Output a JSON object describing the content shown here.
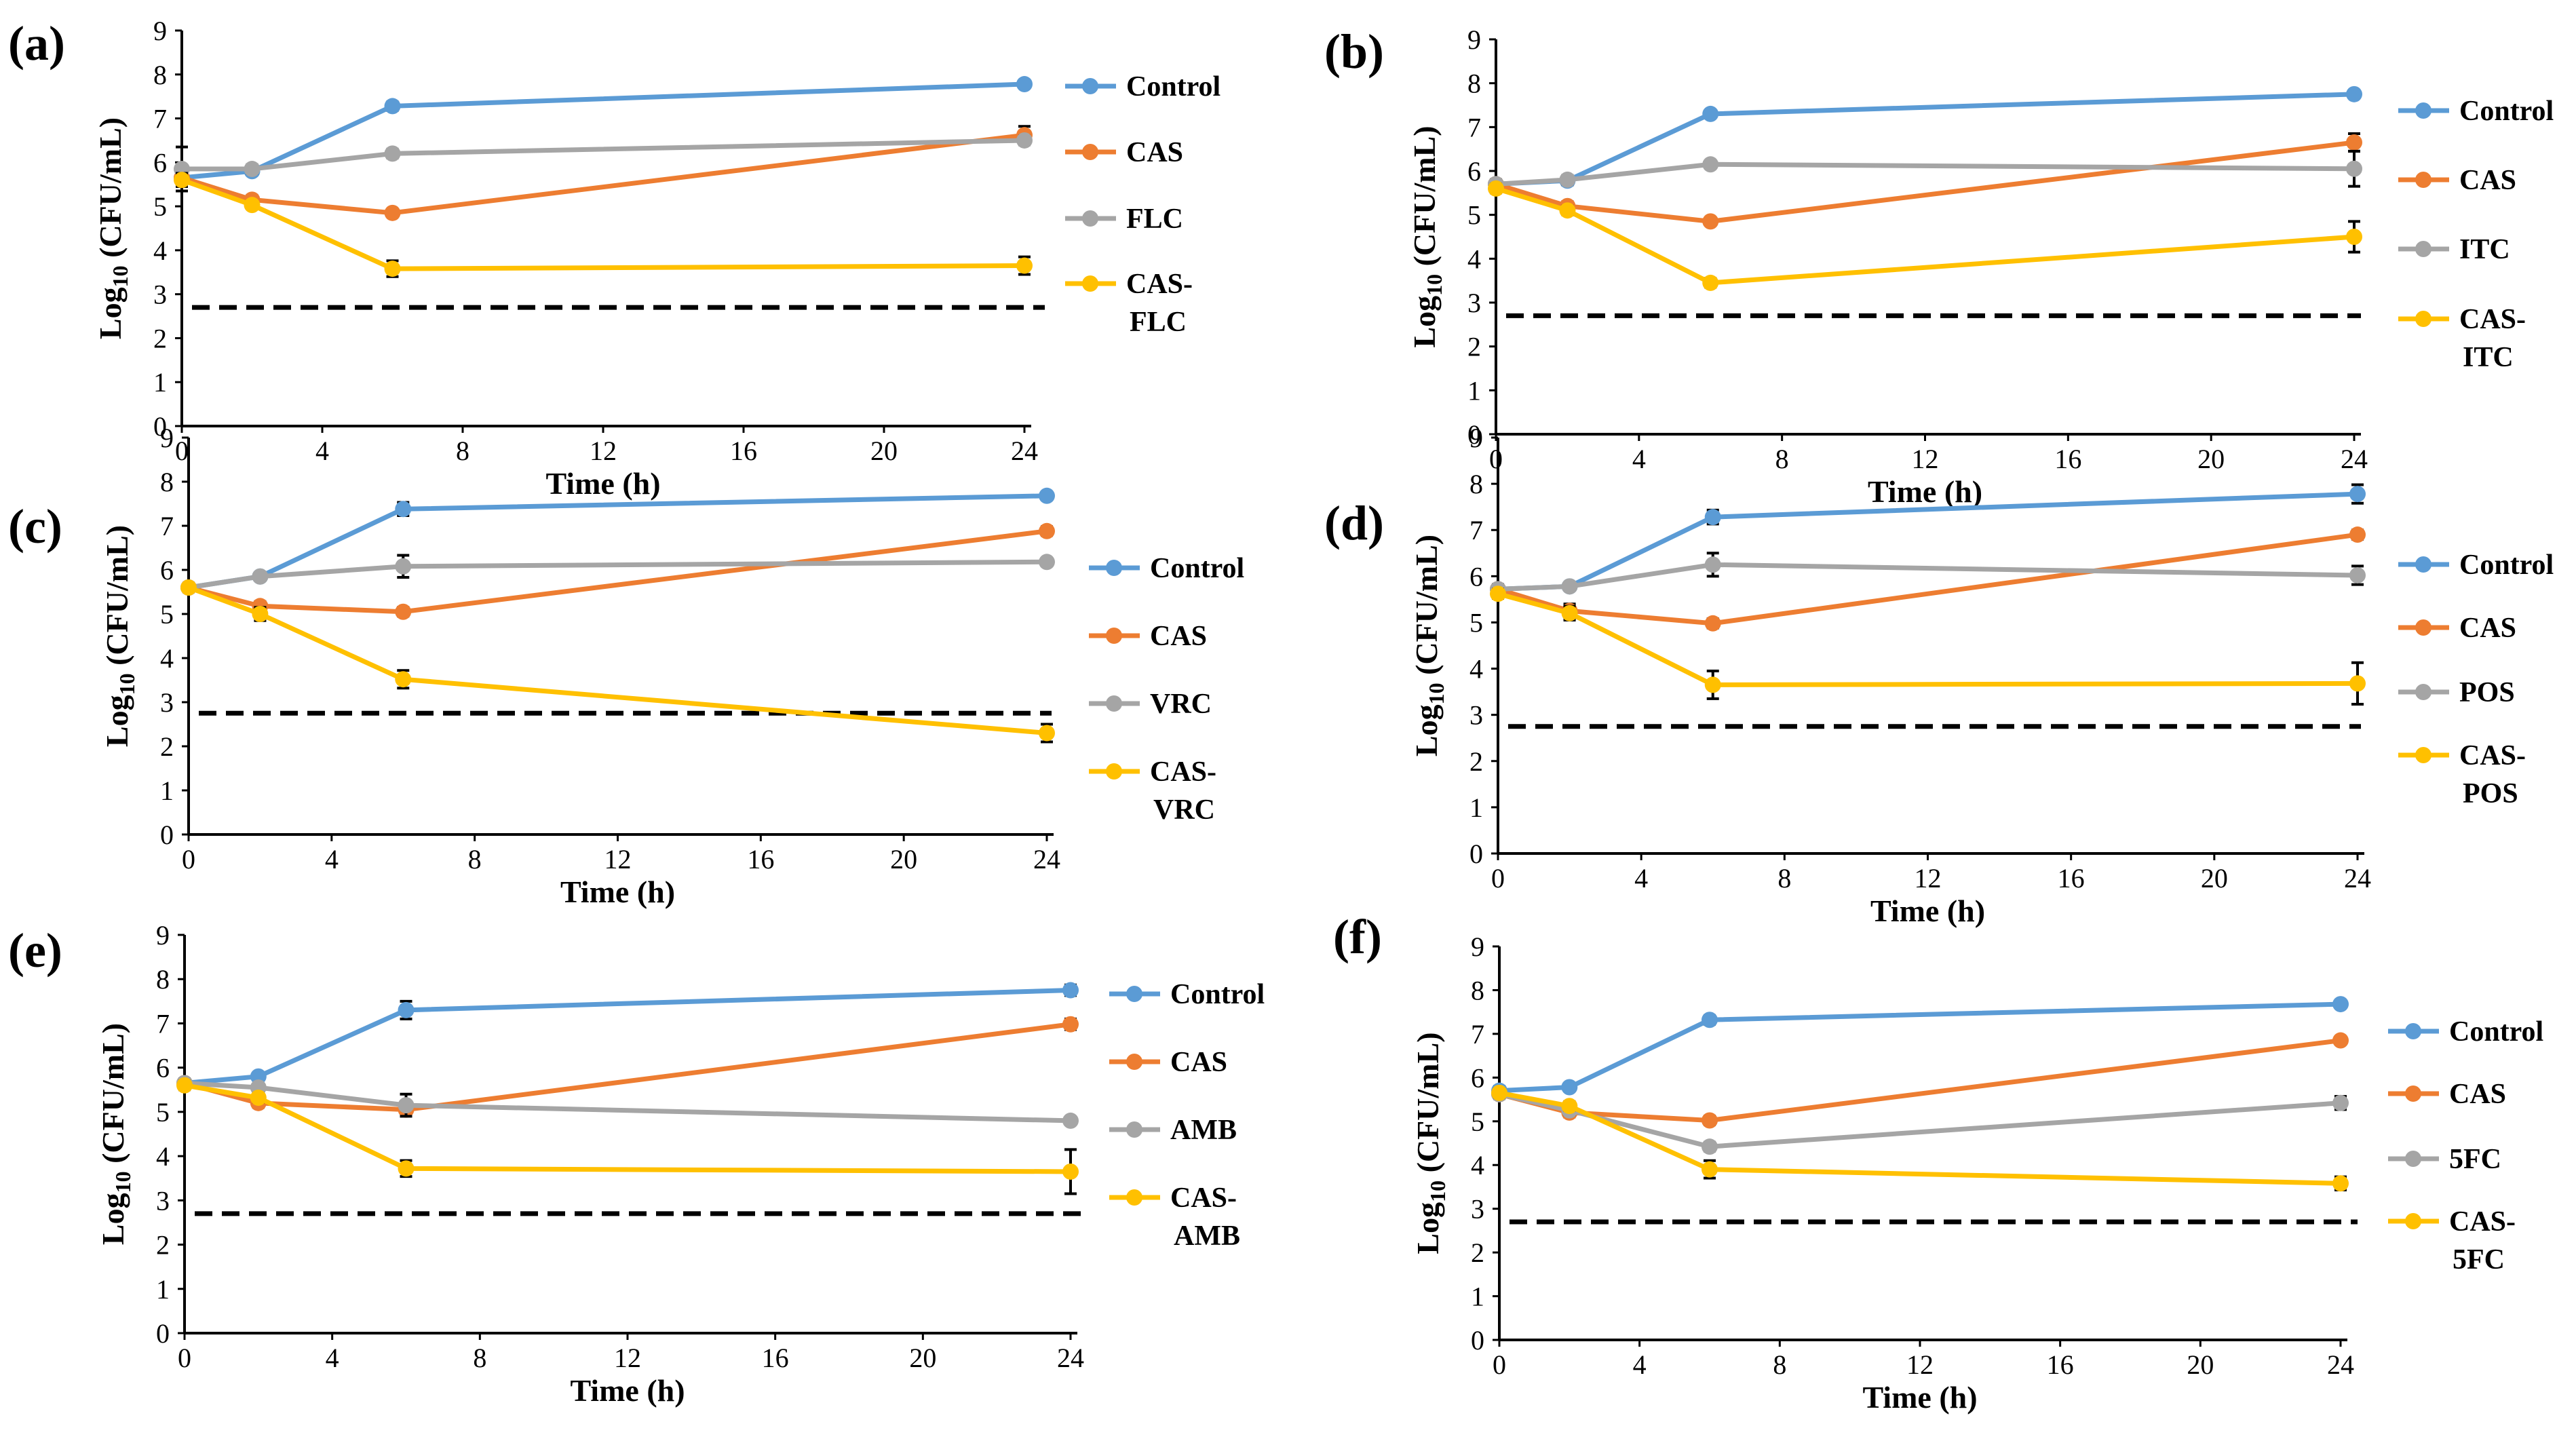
{
  "time_points": [
    0,
    2,
    6,
    24
  ],
  "chart_data": [
    {
      "panel": "(a)",
      "type": "line",
      "xlabel": "Time (h)",
      "ylabel": "Log10 (CFU/mL)",
      "xlim": [
        0,
        24
      ],
      "ylim": [
        0,
        9
      ],
      "xticks": [
        0,
        4,
        8,
        12,
        16,
        20,
        24
      ],
      "yticks": [
        0,
        1,
        2,
        3,
        4,
        5,
        6,
        7,
        8,
        9
      ],
      "detection_limit": 2.7,
      "series": [
        {
          "name": "Control",
          "values": [
            5.65,
            5.8,
            7.28,
            7.78
          ],
          "errors": [
            0.15,
            0.08,
            0.1,
            0.08
          ]
        },
        {
          "name": "CAS",
          "values": [
            5.65,
            5.15,
            4.85,
            6.62
          ],
          "errors": [
            0.15,
            0.1,
            0.08,
            0.2
          ]
        },
        {
          "name": "FLC",
          "values": [
            5.85,
            5.85,
            6.2,
            6.5
          ],
          "errors": [
            0.5,
            0.1,
            0.1,
            0.1
          ]
        },
        {
          "name": "CAS-FLC",
          "values": [
            5.6,
            5.03,
            3.58,
            3.65
          ],
          "errors": [
            0.15,
            0.08,
            0.18,
            0.2
          ]
        }
      ]
    },
    {
      "panel": "(b)",
      "type": "line",
      "xlabel": "Time (h)",
      "ylabel": "Log10 (CFU/mL)",
      "xlim": [
        0,
        24
      ],
      "ylim": [
        0,
        9
      ],
      "xticks": [
        0,
        4,
        8,
        12,
        16,
        20,
        24
      ],
      "yticks": [
        0,
        1,
        2,
        3,
        4,
        5,
        6,
        7,
        8,
        9
      ],
      "detection_limit": 2.7,
      "series": [
        {
          "name": "Control",
          "values": [
            5.7,
            5.78,
            7.3,
            7.75
          ],
          "errors": [
            0.1,
            0.1,
            0.08,
            0.08
          ]
        },
        {
          "name": "CAS",
          "values": [
            5.7,
            5.2,
            4.85,
            6.65
          ],
          "errors": [
            0.1,
            0.1,
            0.08,
            0.2
          ]
        },
        {
          "name": "ITC",
          "values": [
            5.7,
            5.8,
            6.15,
            6.05
          ],
          "errors": [
            0.1,
            0.1,
            0.08,
            0.4
          ]
        },
        {
          "name": "CAS-ITC",
          "values": [
            5.6,
            5.1,
            3.45,
            4.5
          ],
          "errors": [
            0.1,
            0.1,
            0.1,
            0.35
          ]
        }
      ]
    },
    {
      "panel": "(c)",
      "type": "line",
      "xlabel": "Time (h)",
      "ylabel": "Log10 (CFU/mL)",
      "xlim": [
        0,
        24
      ],
      "ylim": [
        0,
        9
      ],
      "xticks": [
        0,
        4,
        8,
        12,
        16,
        20,
        24
      ],
      "yticks": [
        0,
        1,
        2,
        3,
        4,
        5,
        6,
        7,
        8,
        9
      ],
      "detection_limit": 2.75,
      "series": [
        {
          "name": "Control",
          "values": [
            5.6,
            5.85,
            7.38,
            7.68
          ],
          "errors": [
            0.1,
            0.08,
            0.15,
            0.08
          ]
        },
        {
          "name": "CAS",
          "values": [
            5.6,
            5.18,
            5.05,
            6.88
          ],
          "errors": [
            0.1,
            0.1,
            0.1,
            0.1
          ]
        },
        {
          "name": "VRC",
          "values": [
            5.6,
            5.85,
            6.08,
            6.18
          ],
          "errors": [
            0.1,
            0.08,
            0.25,
            0.08
          ]
        },
        {
          "name": "CAS-VRC",
          "values": [
            5.6,
            5.0,
            3.52,
            2.3
          ],
          "errors": [
            0.1,
            0.15,
            0.2,
            0.2
          ]
        }
      ]
    },
    {
      "panel": "(d)",
      "type": "line",
      "xlabel": "Time (h)",
      "ylabel": "Log10 (CFU/mL)",
      "xlim": [
        0,
        24
      ],
      "ylim": [
        0,
        9
      ],
      "xticks": [
        0,
        4,
        8,
        12,
        16,
        20,
        24
      ],
      "yticks": [
        0,
        1,
        2,
        3,
        4,
        5,
        6,
        7,
        8,
        9
      ],
      "detection_limit": 2.75,
      "series": [
        {
          "name": "Control",
          "values": [
            5.72,
            5.78,
            7.28,
            7.78
          ],
          "errors": [
            0.1,
            0.08,
            0.15,
            0.2
          ]
        },
        {
          "name": "CAS",
          "values": [
            5.72,
            5.25,
            4.98,
            6.9
          ],
          "errors": [
            0.1,
            0.15,
            0.1,
            0.1
          ]
        },
        {
          "name": "POS",
          "values": [
            5.72,
            5.78,
            6.25,
            6.02
          ],
          "errors": [
            0.1,
            0.08,
            0.25,
            0.2
          ]
        },
        {
          "name": "CAS-POS",
          "values": [
            5.62,
            5.2,
            3.65,
            3.68
          ],
          "errors": [
            0.1,
            0.15,
            0.3,
            0.45
          ]
        }
      ]
    },
    {
      "panel": "(e)",
      "type": "line",
      "xlabel": "Time (h)",
      "ylabel": "Log10 (CFU/mL)",
      "xlim": [
        0,
        24
      ],
      "ylim": [
        0,
        9
      ],
      "xticks": [
        0,
        4,
        8,
        12,
        16,
        20,
        24
      ],
      "yticks": [
        0,
        1,
        2,
        3,
        4,
        5,
        6,
        7,
        8,
        9
      ],
      "detection_limit": 2.7,
      "series": [
        {
          "name": "Control",
          "values": [
            5.65,
            5.8,
            7.3,
            7.75
          ],
          "errors": [
            0.1,
            0.08,
            0.2,
            0.12
          ]
        },
        {
          "name": "CAS",
          "values": [
            5.65,
            5.2,
            5.05,
            6.98
          ],
          "errors": [
            0.1,
            0.1,
            0.1,
            0.12
          ]
        },
        {
          "name": "AMB",
          "values": [
            5.65,
            5.55,
            5.15,
            4.8
          ],
          "errors": [
            0.1,
            0.08,
            0.25,
            0.08
          ]
        },
        {
          "name": "CAS-AMB",
          "values": [
            5.6,
            5.32,
            3.72,
            3.65
          ],
          "errors": [
            0.1,
            0.1,
            0.18,
            0.5
          ]
        }
      ]
    },
    {
      "panel": "(f)",
      "type": "line",
      "xlabel": "Time (h)",
      "ylabel": "Log10 (CFU/mL)",
      "xlim": [
        0,
        24
      ],
      "ylim": [
        0,
        9
      ],
      "xticks": [
        0,
        4,
        8,
        12,
        16,
        20,
        24
      ],
      "yticks": [
        0,
        1,
        2,
        3,
        4,
        5,
        6,
        7,
        8,
        9
      ],
      "detection_limit": 2.7,
      "series": [
        {
          "name": "Control",
          "values": [
            5.7,
            5.78,
            7.32,
            7.68
          ],
          "errors": [
            0.1,
            0.08,
            0.1,
            0.08
          ]
        },
        {
          "name": "CAS",
          "values": [
            5.62,
            5.2,
            5.02,
            6.85
          ],
          "errors": [
            0.1,
            0.1,
            0.1,
            0.08
          ]
        },
        {
          "name": "5FC",
          "values": [
            5.62,
            5.25,
            4.42,
            5.42
          ],
          "errors": [
            0.1,
            0.1,
            0.1,
            0.15
          ]
        },
        {
          "name": "CAS-5FC",
          "values": [
            5.65,
            5.35,
            3.9,
            3.58
          ],
          "errors": [
            0.1,
            0.1,
            0.2,
            0.15
          ]
        }
      ]
    }
  ],
  "colors": {
    "Control": "#5b9bd5",
    "CAS": "#ed7d31",
    "treat": "#a5a5a5",
    "combo": "#ffc000"
  }
}
